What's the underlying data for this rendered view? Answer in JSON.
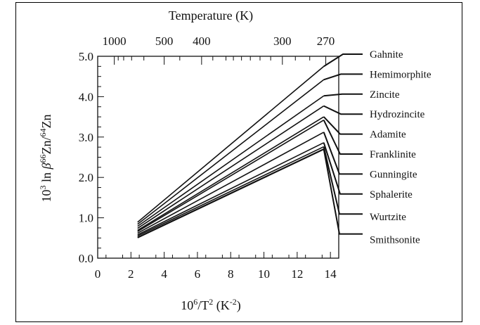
{
  "chart_data": {
    "type": "line",
    "title": "",
    "xlabel": {
      "base": "10",
      "sup1": "6",
      "mid": "/T",
      "sup2": "2",
      "unit_open": " (K",
      "sup3": "-2",
      "unit_close": ")"
    },
    "ylabel": {
      "p1": "10",
      "s1": "3",
      "p2": " ln ",
      "p3": "β",
      "s2": "66",
      "p4": "Zn/",
      "s3": "64",
      "p5": "Zn"
    },
    "top_axis_title": "Temperature (K)",
    "xlim": [
      0,
      14.5
    ],
    "ylim": [
      0,
      5.0
    ],
    "x_ticks": [
      0,
      2,
      4,
      6,
      8,
      10,
      12,
      14
    ],
    "x_tick_labels": [
      "0",
      "2",
      "4",
      "6",
      "8",
      "10",
      "12",
      "14"
    ],
    "y_ticks": [
      0,
      1,
      2,
      3,
      4,
      5
    ],
    "y_tick_labels": [
      "0.0",
      "1.0",
      "2.0",
      "3.0",
      "4.0",
      "5.0"
    ],
    "top_ticks": [
      {
        "label": "1000",
        "x": 1.0
      },
      {
        "label": "500",
        "x": 4.0
      },
      {
        "label": "400",
        "x": 6.25
      },
      {
        "label": "300",
        "x": 11.11
      },
      {
        "label": "270",
        "x": 13.72
      }
    ],
    "x": [
      2.4,
      13.6
    ],
    "series": [
      {
        "name": "Gahnite",
        "values": [
          0.89,
          4.75
        ]
      },
      {
        "name": "Hemimorphite",
        "values": [
          0.84,
          4.42
        ]
      },
      {
        "name": "Zincite",
        "values": [
          0.79,
          4.02
        ]
      },
      {
        "name": "Hydrozincite",
        "values": [
          0.74,
          3.77
        ]
      },
      {
        "name": "Adamite",
        "values": [
          0.69,
          3.5
        ]
      },
      {
        "name": "Franklinite",
        "values": [
          0.66,
          3.42
        ]
      },
      {
        "name": "Gunningite",
        "values": [
          0.62,
          3.12
        ]
      },
      {
        "name": "Sphalerite",
        "values": [
          0.58,
          2.86
        ]
      },
      {
        "name": "Wurtzite",
        "values": [
          0.55,
          2.76
        ]
      },
      {
        "name": "Smithsonite",
        "values": [
          0.51,
          2.7
        ]
      }
    ]
  }
}
